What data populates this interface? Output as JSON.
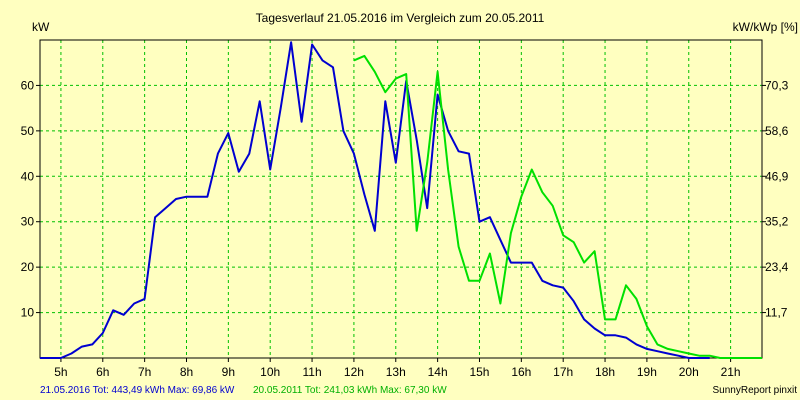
{
  "chart_data": {
    "type": "line",
    "title": "Tagesverlauf 21.05.2016 im Vergleich zum 20.05.2011",
    "ylabel_left": "kW",
    "ylabel_right": "kW/kWp [%]",
    "xlim": [
      4.5,
      21.75
    ],
    "ylim": [
      0,
      70
    ],
    "grid": true,
    "x_ticks": [
      "5h",
      "6h",
      "7h",
      "8h",
      "9h",
      "10h",
      "11h",
      "12h",
      "13h",
      "14h",
      "15h",
      "16h",
      "17h",
      "18h",
      "19h",
      "20h",
      "21h"
    ],
    "y_ticks_left": [
      "10",
      "20",
      "30",
      "40",
      "50",
      "60"
    ],
    "y_ticks_right": [
      "11,7",
      "23,4",
      "35,2",
      "46,9",
      "58,6",
      "70,3"
    ],
    "series": [
      {
        "name": "21.05.2016",
        "color": "#0000d0",
        "points": [
          [
            4.5,
            0
          ],
          [
            5.0,
            0
          ],
          [
            5.25,
            1
          ],
          [
            5.5,
            2.5
          ],
          [
            5.75,
            3
          ],
          [
            6.0,
            5.5
          ],
          [
            6.25,
            10.5
          ],
          [
            6.5,
            9.5
          ],
          [
            6.75,
            12
          ],
          [
            7.0,
            13
          ],
          [
            7.25,
            31
          ],
          [
            7.5,
            33
          ],
          [
            7.75,
            35
          ],
          [
            8.0,
            35.5
          ],
          [
            8.25,
            35.5
          ],
          [
            8.5,
            35.5
          ],
          [
            8.75,
            45
          ],
          [
            9.0,
            49.5
          ],
          [
            9.25,
            41
          ],
          [
            9.5,
            45
          ],
          [
            9.75,
            56.5
          ],
          [
            10.0,
            41.5
          ],
          [
            10.25,
            55
          ],
          [
            10.5,
            69.5
          ],
          [
            10.75,
            52
          ],
          [
            11.0,
            69
          ],
          [
            11.25,
            65.5
          ],
          [
            11.5,
            64
          ],
          [
            11.75,
            50
          ],
          [
            12.0,
            45
          ],
          [
            12.25,
            36
          ],
          [
            12.5,
            28
          ],
          [
            12.75,
            56.5
          ],
          [
            13.0,
            43
          ],
          [
            13.25,
            61
          ],
          [
            13.5,
            48
          ],
          [
            13.75,
            33
          ],
          [
            14.0,
            58
          ],
          [
            14.25,
            50
          ],
          [
            14.5,
            45.5
          ],
          [
            14.75,
            45
          ],
          [
            15.0,
            30
          ],
          [
            15.25,
            31
          ],
          [
            15.5,
            26
          ],
          [
            15.75,
            21
          ],
          [
            16.0,
            21
          ],
          [
            16.25,
            21
          ],
          [
            16.5,
            17
          ],
          [
            16.75,
            16
          ],
          [
            17.0,
            15.5
          ],
          [
            17.25,
            12.5
          ],
          [
            17.5,
            8.5
          ],
          [
            17.75,
            6.5
          ],
          [
            18.0,
            5
          ],
          [
            18.25,
            5
          ],
          [
            18.5,
            4.5
          ],
          [
            18.75,
            3
          ],
          [
            19.0,
            2
          ],
          [
            19.25,
            1.5
          ],
          [
            19.5,
            1
          ],
          [
            19.75,
            0.5
          ],
          [
            20.0,
            0
          ],
          [
            20.5,
            0
          ]
        ]
      },
      {
        "name": "20.05.2011",
        "color": "#00e000",
        "points": [
          [
            12.0,
            65.5
          ],
          [
            12.25,
            66.5
          ],
          [
            12.5,
            63
          ],
          [
            12.75,
            58.5
          ],
          [
            13.0,
            61.5
          ],
          [
            13.25,
            62.5
          ],
          [
            13.5,
            28
          ],
          [
            13.75,
            43
          ],
          [
            14.0,
            63
          ],
          [
            14.25,
            41.5
          ],
          [
            14.5,
            24.5
          ],
          [
            14.75,
            17
          ],
          [
            15.0,
            17
          ],
          [
            15.25,
            23
          ],
          [
            15.5,
            12
          ],
          [
            15.75,
            27.5
          ],
          [
            16.0,
            35.5
          ],
          [
            16.25,
            41.5
          ],
          [
            16.5,
            36.5
          ],
          [
            16.75,
            33.5
          ],
          [
            17.0,
            27
          ],
          [
            17.25,
            25.5
          ],
          [
            17.5,
            21
          ],
          [
            17.75,
            23.5
          ],
          [
            18.0,
            8.5
          ],
          [
            18.25,
            8.5
          ],
          [
            18.5,
            16
          ],
          [
            18.75,
            13
          ],
          [
            19.0,
            7
          ],
          [
            19.25,
            3
          ],
          [
            19.5,
            2
          ],
          [
            19.75,
            1.5
          ],
          [
            20.0,
            1
          ],
          [
            20.25,
            0.5
          ],
          [
            20.5,
            0.5
          ],
          [
            20.75,
            0
          ],
          [
            21.75,
            0
          ]
        ]
      }
    ],
    "legend": {
      "s1_label": "21.05.2016 Tot: 443,49 kWh Max: 69,86 kW",
      "s2_label": "20.05.2011 Tot: 241,03 kWh Max: 67,30 kW",
      "credit": "SunnyReport pinxit"
    }
  }
}
